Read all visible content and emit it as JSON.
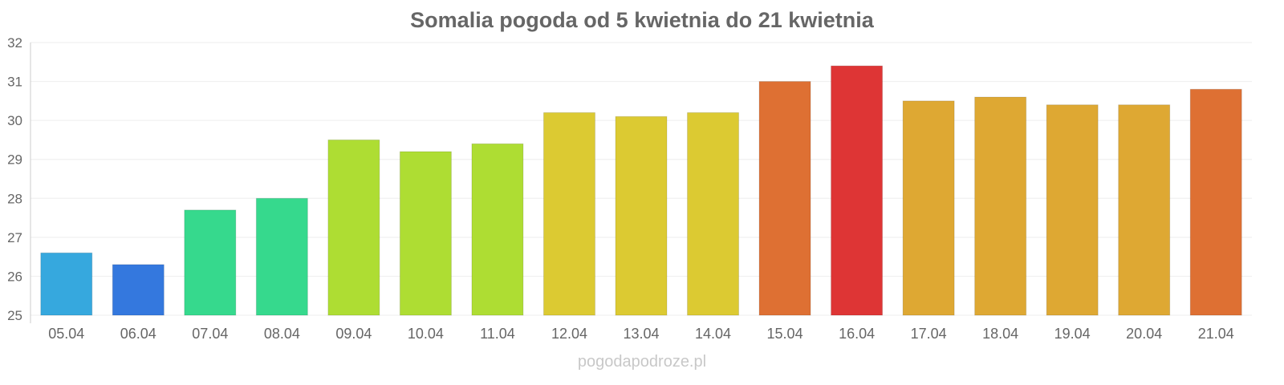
{
  "chart_data": {
    "type": "bar",
    "title": "Somalia pogoda od 5 kwietnia do 21 kwietnia",
    "xlabel": "",
    "ylabel": "",
    "ylim": [
      25,
      32
    ],
    "yticks": [
      25,
      26,
      27,
      28,
      29,
      30,
      31,
      32
    ],
    "grid": true,
    "categories": [
      "05.04",
      "06.04",
      "07.04",
      "08.04",
      "09.04",
      "10.04",
      "11.04",
      "12.04",
      "13.04",
      "14.04",
      "15.04",
      "16.04",
      "17.04",
      "18.04",
      "19.04",
      "20.04",
      "21.04"
    ],
    "values": [
      26.6,
      26.3,
      27.7,
      28.0,
      29.5,
      29.2,
      29.4,
      30.2,
      30.1,
      30.2,
      31.0,
      31.4,
      30.5,
      30.6,
      30.4,
      30.4,
      30.8
    ],
    "colors": [
      "#36a8de",
      "#3478de",
      "#36d98d",
      "#36d98d",
      "#aedd33",
      "#aedd33",
      "#aedd33",
      "#dcca32",
      "#dcca32",
      "#dcca32",
      "#de7033",
      "#de3535",
      "#dea833",
      "#dea833",
      "#dea833",
      "#dea833",
      "#de7033"
    ]
  },
  "watermark": "pogodapodroze.pl"
}
